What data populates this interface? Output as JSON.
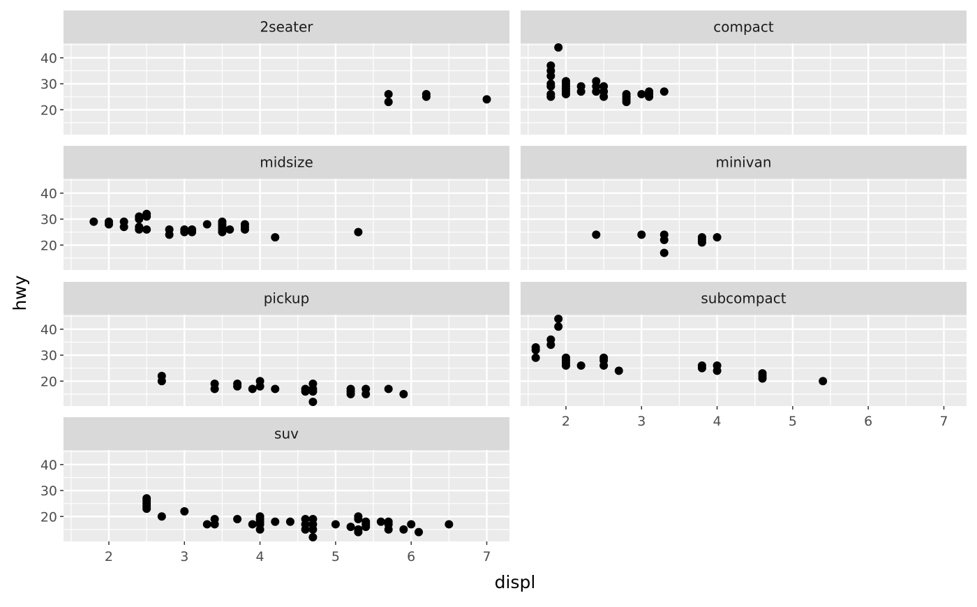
{
  "chart_data": {
    "type": "scatter",
    "facet_by": "class",
    "xlabel": "displ",
    "ylabel": "hwy",
    "xlim": [
      1.4,
      7.3
    ],
    "ylim": [
      10.4,
      45.6
    ],
    "x_ticks": [
      "2",
      "3",
      "4",
      "5",
      "6",
      "7"
    ],
    "y_ticks": [
      "20",
      "30",
      "40"
    ],
    "grid": true,
    "point_color": "#000000",
    "panel_background": "#ebebeb",
    "strip_background": "#d9d9d9",
    "facets": [
      {
        "label": "2seater",
        "points": [
          [
            5.7,
            26
          ],
          [
            5.7,
            23
          ],
          [
            6.2,
            26
          ],
          [
            6.2,
            25
          ],
          [
            7.0,
            24
          ]
        ]
      },
      {
        "label": "compact",
        "points": [
          [
            1.8,
            25
          ],
          [
            1.8,
            26
          ],
          [
            1.8,
            29
          ],
          [
            1.8,
            30
          ],
          [
            1.8,
            33
          ],
          [
            1.8,
            35
          ],
          [
            1.8,
            37
          ],
          [
            1.9,
            44
          ],
          [
            2.0,
            26
          ],
          [
            2.0,
            27
          ],
          [
            2.0,
            28
          ],
          [
            2.0,
            29
          ],
          [
            2.0,
            30
          ],
          [
            2.0,
            31
          ],
          [
            2.2,
            27
          ],
          [
            2.2,
            29
          ],
          [
            2.4,
            27
          ],
          [
            2.4,
            29
          ],
          [
            2.4,
            31
          ],
          [
            2.5,
            25
          ],
          [
            2.5,
            27
          ],
          [
            2.5,
            29
          ],
          [
            2.8,
            23
          ],
          [
            2.8,
            24
          ],
          [
            2.8,
            25
          ],
          [
            2.8,
            26
          ],
          [
            3.0,
            26
          ],
          [
            3.1,
            25
          ],
          [
            3.1,
            26
          ],
          [
            3.1,
            27
          ],
          [
            3.3,
            27
          ]
        ]
      },
      {
        "label": "midsize",
        "points": [
          [
            1.8,
            29
          ],
          [
            2.0,
            28
          ],
          [
            2.0,
            29
          ],
          [
            2.2,
            27
          ],
          [
            2.2,
            29
          ],
          [
            2.4,
            26
          ],
          [
            2.4,
            27
          ],
          [
            2.4,
            30
          ],
          [
            2.4,
            31
          ],
          [
            2.5,
            26
          ],
          [
            2.5,
            31
          ],
          [
            2.5,
            32
          ],
          [
            2.8,
            24
          ],
          [
            2.8,
            26
          ],
          [
            3.0,
            25
          ],
          [
            3.0,
            26
          ],
          [
            3.1,
            25
          ],
          [
            3.1,
            26
          ],
          [
            3.3,
            28
          ],
          [
            3.5,
            25
          ],
          [
            3.5,
            26
          ],
          [
            3.5,
            27
          ],
          [
            3.5,
            28
          ],
          [
            3.5,
            29
          ],
          [
            3.6,
            26
          ],
          [
            3.8,
            26
          ],
          [
            3.8,
            27
          ],
          [
            3.8,
            28
          ],
          [
            4.2,
            23
          ],
          [
            5.3,
            25
          ]
        ]
      },
      {
        "label": "minivan",
        "points": [
          [
            2.4,
            24
          ],
          [
            3.0,
            24
          ],
          [
            3.3,
            17
          ],
          [
            3.3,
            22
          ],
          [
            3.3,
            24
          ],
          [
            3.8,
            21
          ],
          [
            3.8,
            22
          ],
          [
            3.8,
            23
          ],
          [
            4.0,
            23
          ]
        ]
      },
      {
        "label": "pickup",
        "points": [
          [
            2.7,
            20
          ],
          [
            2.7,
            22
          ],
          [
            3.4,
            17
          ],
          [
            3.4,
            19
          ],
          [
            3.7,
            18
          ],
          [
            3.7,
            19
          ],
          [
            3.9,
            17
          ],
          [
            4.0,
            18
          ],
          [
            4.0,
            20
          ],
          [
            4.2,
            17
          ],
          [
            4.6,
            16
          ],
          [
            4.6,
            17
          ],
          [
            4.7,
            12
          ],
          [
            4.7,
            16
          ],
          [
            4.7,
            17
          ],
          [
            4.7,
            19
          ],
          [
            5.2,
            15
          ],
          [
            5.2,
            16
          ],
          [
            5.2,
            17
          ],
          [
            5.4,
            15
          ],
          [
            5.4,
            17
          ],
          [
            5.7,
            17
          ],
          [
            5.9,
            15
          ]
        ]
      },
      {
        "label": "subcompact",
        "points": [
          [
            1.6,
            29
          ],
          [
            1.6,
            32
          ],
          [
            1.6,
            33
          ],
          [
            1.8,
            34
          ],
          [
            1.8,
            36
          ],
          [
            1.9,
            41
          ],
          [
            1.9,
            44
          ],
          [
            2.0,
            26
          ],
          [
            2.0,
            27
          ],
          [
            2.0,
            28
          ],
          [
            2.0,
            29
          ],
          [
            2.2,
            26
          ],
          [
            2.5,
            26
          ],
          [
            2.5,
            28
          ],
          [
            2.5,
            29
          ],
          [
            2.7,
            24
          ],
          [
            3.8,
            25
          ],
          [
            3.8,
            26
          ],
          [
            4.0,
            24
          ],
          [
            4.0,
            26
          ],
          [
            4.6,
            21
          ],
          [
            4.6,
            22
          ],
          [
            4.6,
            23
          ],
          [
            5.4,
            20
          ]
        ]
      },
      {
        "label": "suv",
        "points": [
          [
            2.5,
            23
          ],
          [
            2.5,
            24
          ],
          [
            2.5,
            25
          ],
          [
            2.5,
            26
          ],
          [
            2.5,
            27
          ],
          [
            2.7,
            20
          ],
          [
            3.0,
            22
          ],
          [
            3.3,
            17
          ],
          [
            3.4,
            17
          ],
          [
            3.4,
            19
          ],
          [
            3.7,
            19
          ],
          [
            3.9,
            17
          ],
          [
            4.0,
            15
          ],
          [
            4.0,
            17
          ],
          [
            4.0,
            18
          ],
          [
            4.0,
            19
          ],
          [
            4.0,
            20
          ],
          [
            4.2,
            18
          ],
          [
            4.4,
            18
          ],
          [
            4.6,
            15
          ],
          [
            4.6,
            17
          ],
          [
            4.6,
            19
          ],
          [
            4.7,
            12
          ],
          [
            4.7,
            15
          ],
          [
            4.7,
            17
          ],
          [
            4.7,
            19
          ],
          [
            5.0,
            17
          ],
          [
            5.2,
            16
          ],
          [
            5.3,
            14
          ],
          [
            5.3,
            15
          ],
          [
            5.3,
            19
          ],
          [
            5.3,
            20
          ],
          [
            5.4,
            16
          ],
          [
            5.4,
            17
          ],
          [
            5.4,
            18
          ],
          [
            5.6,
            18
          ],
          [
            5.7,
            15
          ],
          [
            5.7,
            17
          ],
          [
            5.7,
            18
          ],
          [
            5.9,
            15
          ],
          [
            6.0,
            17
          ],
          [
            6.1,
            14
          ],
          [
            6.5,
            17
          ]
        ]
      }
    ]
  }
}
